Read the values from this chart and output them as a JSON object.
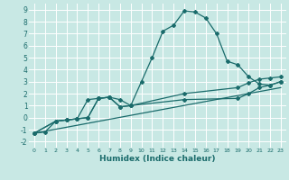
{
  "xlabel": "Humidex (Indice chaleur)",
  "xlim": [
    -0.5,
    23.5
  ],
  "ylim": [
    -2.5,
    9.5
  ],
  "yticks": [
    -2,
    -1,
    0,
    1,
    2,
    3,
    4,
    5,
    6,
    7,
    8,
    9
  ],
  "xticks": [
    0,
    1,
    2,
    3,
    4,
    5,
    6,
    7,
    8,
    9,
    10,
    11,
    12,
    13,
    14,
    15,
    16,
    17,
    18,
    19,
    20,
    21,
    22,
    23
  ],
  "bg_color": "#c8e8e4",
  "line_color": "#1a6b6b",
  "grid_color": "#ffffff",
  "line1_x": [
    0,
    1,
    2,
    3,
    4,
    5,
    6,
    7,
    8,
    9,
    10,
    11,
    12,
    13,
    14,
    15,
    16,
    17,
    18,
    19,
    20,
    21,
    22,
    23
  ],
  "line1_y": [
    -1.3,
    -1.2,
    -0.3,
    -0.2,
    -0.1,
    1.5,
    1.6,
    1.7,
    1.5,
    1.0,
    3.0,
    5.0,
    7.2,
    7.7,
    8.9,
    8.8,
    8.3,
    7.0,
    4.7,
    4.4,
    3.4,
    2.8,
    2.7,
    3.0
  ],
  "line2_x": [
    0,
    2,
    3,
    4,
    5,
    6,
    7,
    8,
    9,
    14,
    19,
    20,
    21,
    22,
    23
  ],
  "line2_y": [
    -1.3,
    -0.3,
    -0.2,
    -0.1,
    0.0,
    1.6,
    1.7,
    0.9,
    1.0,
    1.5,
    1.6,
    2.0,
    2.5,
    2.7,
    3.0
  ],
  "line3_x": [
    0,
    2,
    3,
    4,
    5,
    6,
    7,
    8,
    9,
    14,
    19,
    20,
    21,
    22,
    23
  ],
  "line3_y": [
    -1.3,
    -0.3,
    -0.2,
    -0.1,
    0.0,
    1.6,
    1.7,
    0.9,
    1.0,
    2.0,
    2.5,
    2.9,
    3.2,
    3.3,
    3.4
  ],
  "line4_x": [
    0,
    23
  ],
  "line4_y": [
    -1.3,
    2.5
  ]
}
